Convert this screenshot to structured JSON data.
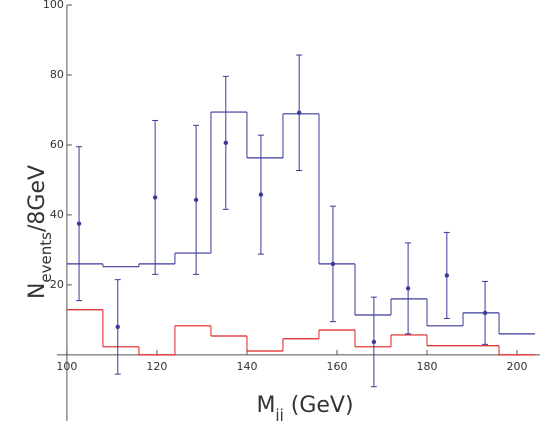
{
  "chart_data": {
    "type": "histogram",
    "xlabel": [
      "M",
      "jj",
      " (GeV)"
    ],
    "ylabel": [
      "N",
      "events",
      "/8GeV"
    ],
    "xlim": [
      97.8,
      205.1
    ],
    "ylim": [
      -18.9,
      100
    ],
    "xticks": [
      100,
      120,
      140,
      160,
      180,
      200
    ],
    "yticks": [
      20,
      40,
      60,
      80,
      100
    ],
    "histograms": [
      {
        "color": "#3a3a9a",
        "bins": [
          100,
          108,
          116,
          124,
          132,
          140,
          148,
          156,
          164,
          172,
          180,
          188,
          196,
          204
        ],
        "values": [
          26,
          25.2,
          26,
          29.1,
          69.4,
          56.3,
          68.9,
          26,
          11.4,
          16,
          8.3,
          12,
          6
        ]
      },
      {
        "color": "#e02020",
        "bins": [
          100,
          108,
          116,
          124,
          132,
          140,
          148,
          156,
          164,
          172,
          180,
          188,
          196,
          204
        ],
        "values": [
          12.9,
          2.3,
          0,
          8.3,
          5.4,
          1.1,
          4.6,
          7.1,
          2.3,
          5.7,
          2.6,
          2.6,
          0
        ]
      }
    ],
    "points": {
      "color": "#3a3a9a",
      "x": [
        102.7,
        111.3,
        119.6,
        128.7,
        135.3,
        143.1,
        151.6,
        159.1,
        168.2,
        175.8,
        184.4,
        192.9
      ],
      "values": [
        37.5,
        8,
        45,
        44.3,
        60.6,
        45.8,
        69.2,
        26,
        3.7,
        19,
        22.7,
        12
      ],
      "errors": [
        22,
        13.5,
        22,
        21.3,
        19,
        17,
        16.5,
        16.5,
        12.8,
        13,
        12.3,
        9
      ]
    }
  }
}
